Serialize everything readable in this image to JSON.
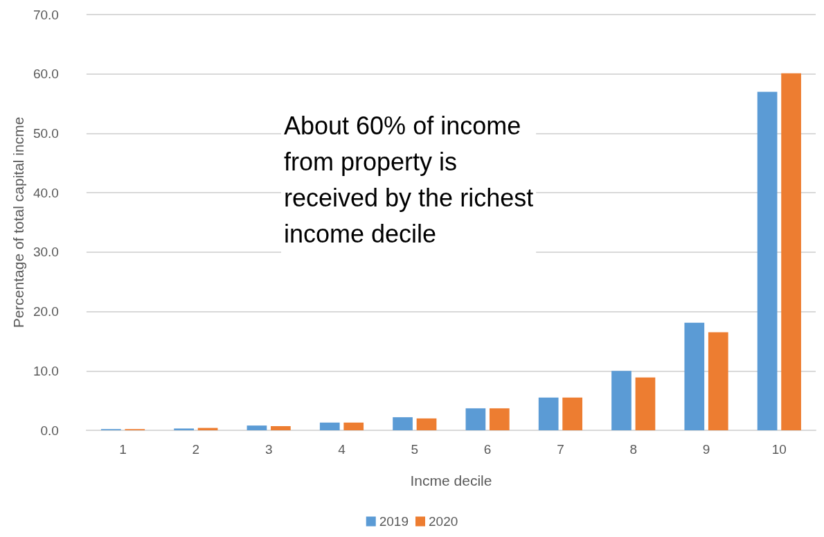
{
  "chart_data": {
    "type": "bar",
    "xlabel": "Incme decile",
    "ylabel": "Percentage of total capital incme",
    "categories": [
      "1",
      "2",
      "3",
      "4",
      "5",
      "6",
      "7",
      "8",
      "9",
      "10"
    ],
    "series": [
      {
        "name": "2019",
        "color": "#5b9bd5",
        "values": [
          0.2,
          0.3,
          0.8,
          1.3,
          2.2,
          3.7,
          5.5,
          10.0,
          18.1,
          57.0
        ]
      },
      {
        "name": "2020",
        "color": "#ed7d31",
        "values": [
          0.2,
          0.4,
          0.7,
          1.3,
          2.0,
          3.7,
          5.5,
          8.9,
          16.5,
          60.1
        ]
      }
    ],
    "ylim": [
      0,
      70
    ],
    "yticks": [
      {
        "value": 0,
        "label": "0.0"
      },
      {
        "value": 10,
        "label": "10.0"
      },
      {
        "value": 20,
        "label": "20.0"
      },
      {
        "value": 30,
        "label": "30.0"
      },
      {
        "value": 40,
        "label": "40.0"
      },
      {
        "value": 50,
        "label": "50.0"
      },
      {
        "value": 60,
        "label": "60.0"
      },
      {
        "value": 70,
        "label": "70.0"
      }
    ],
    "grid": "y",
    "legend": "bottom",
    "annotations": [
      "About 60% of income\nfrom property is\nreceived by the richest\nincome decile"
    ]
  }
}
